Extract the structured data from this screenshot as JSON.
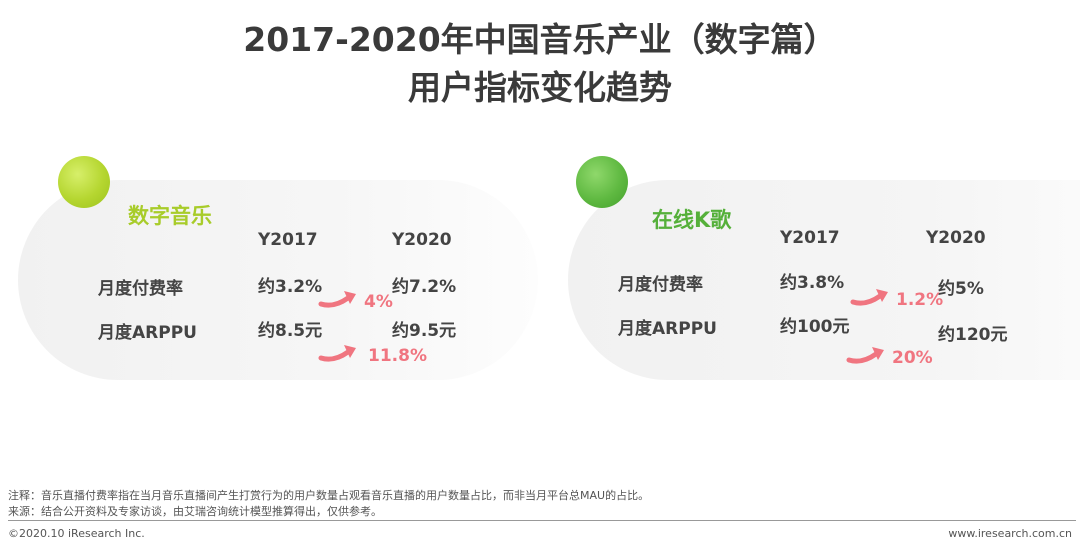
{
  "header": {
    "title_line1": "2017-2020年中国音乐产业（数字篇）",
    "title_line2": "用户指标变化趋势"
  },
  "colors": {
    "lime": "#b5d630",
    "green": "#5fb941",
    "growth": "#f07580"
  },
  "digital_music": {
    "title": "数字音乐",
    "col_2017": "Y2017",
    "col_2020": "Y2020",
    "rows": [
      {
        "label": "月度付费率",
        "y2017": "约3.2%",
        "y2020": "约7.2%",
        "growth": "4%"
      },
      {
        "label": "月度ARPPU",
        "y2017": "约8.5元",
        "y2020": "约9.5元",
        "growth": "11.8%"
      }
    ]
  },
  "online_karaoke": {
    "title": "在线K歌",
    "col_2017": "Y2017",
    "col_2020": "Y2020",
    "rows": [
      {
        "label": "月度付费率",
        "y2017": "约3.8%",
        "y2020": "约5%",
        "growth": "1.2%"
      },
      {
        "label": "月度ARPPU",
        "y2017": "约100元",
        "y2020": "约120元",
        "growth": "20%"
      }
    ]
  },
  "footer": {
    "note1": "注释：音乐直播付费率指在当月音乐直播间产生打赏行为的用户数量占观看音乐直播的用户数量占比，而非当月平台总MAU的占比。",
    "note2": "来源：结合公开资料及专家访谈，由艾瑞咨询统计模型推算得出，仅供参考。",
    "copyright": "©2020.10 iResearch Inc.",
    "website": "www.iresearch.com.cn"
  }
}
